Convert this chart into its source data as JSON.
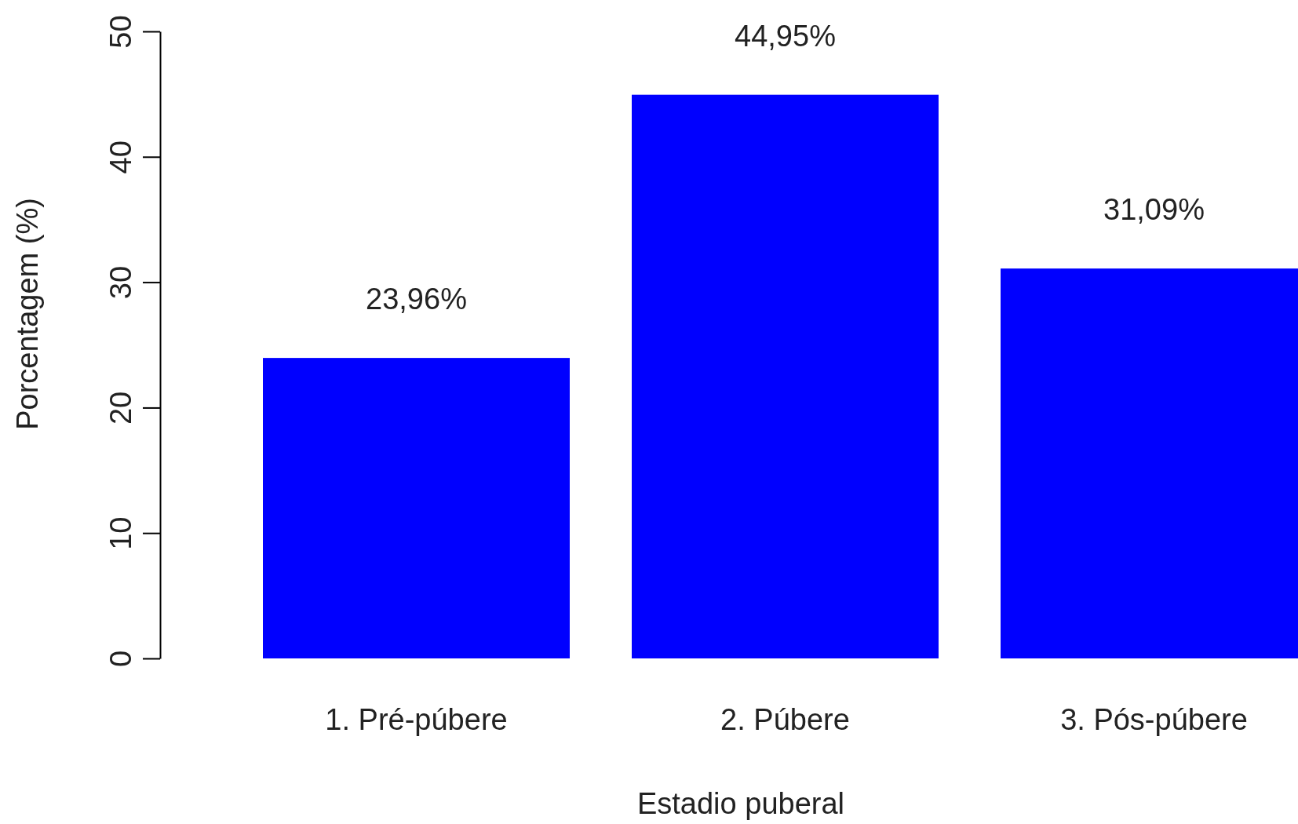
{
  "chart_data": {
    "type": "bar",
    "xlabel": "Estadio puberal",
    "ylabel": "Porcentagem (%)",
    "categories": [
      "1. Pré-púbere",
      "2. Púbere",
      "3. Pós-púbere"
    ],
    "values": [
      23.96,
      44.95,
      31.09
    ],
    "color": "#0000ff",
    "value_labels": [
      "23,96%",
      "44,95%",
      "31,09%"
    ],
    "ylim": [
      0,
      50
    ],
    "yticks": [
      0,
      10,
      20,
      30,
      40,
      50
    ]
  }
}
